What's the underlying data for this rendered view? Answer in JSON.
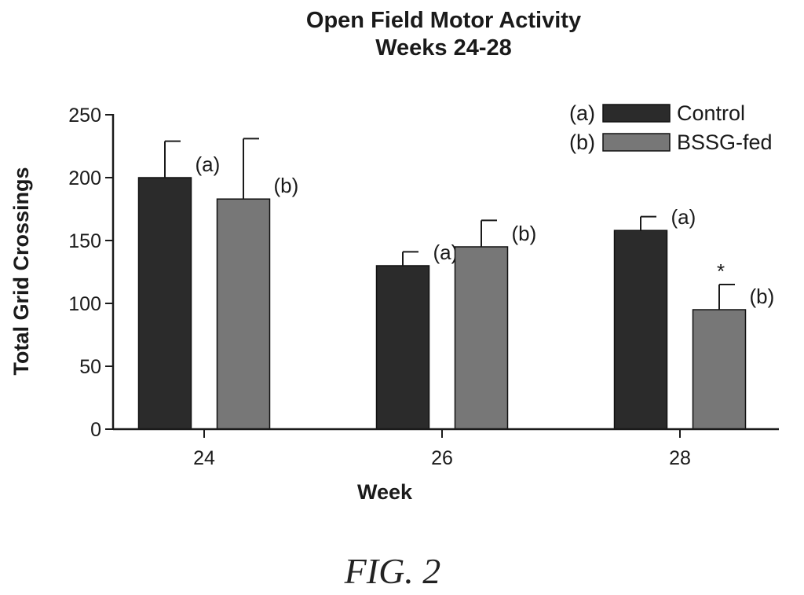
{
  "chart_data": {
    "type": "bar",
    "title": "Open Field Motor Activity",
    "subtitle": "Weeks 24-28",
    "xlabel": "Week",
    "ylabel": "Total Grid Crossings",
    "categories": [
      "24",
      "26",
      "28"
    ],
    "ylim": [
      0,
      250
    ],
    "yticks": [
      "0",
      "50",
      "100",
      "150",
      "200",
      "250"
    ],
    "grid": false,
    "legend": "top-right",
    "series": [
      {
        "name": "Control",
        "legend_tag": "(a)",
        "color": "#2b2b2b",
        "values": [
          200,
          130,
          158
        ],
        "errors": [
          29,
          11,
          11
        ],
        "bar_labels": [
          "(a)",
          "(a)",
          "(a)"
        ]
      },
      {
        "name": "BSSG-fed",
        "legend_tag": "(b)",
        "color": "#777777",
        "values": [
          183,
          145,
          95
        ],
        "errors": [
          48,
          21,
          20
        ],
        "bar_labels": [
          "(b)",
          "(b)",
          "(b)"
        ]
      }
    ],
    "annotations": [
      {
        "series": 1,
        "category": 2,
        "text": "*"
      }
    ]
  },
  "figure_label": "FIG. 2"
}
